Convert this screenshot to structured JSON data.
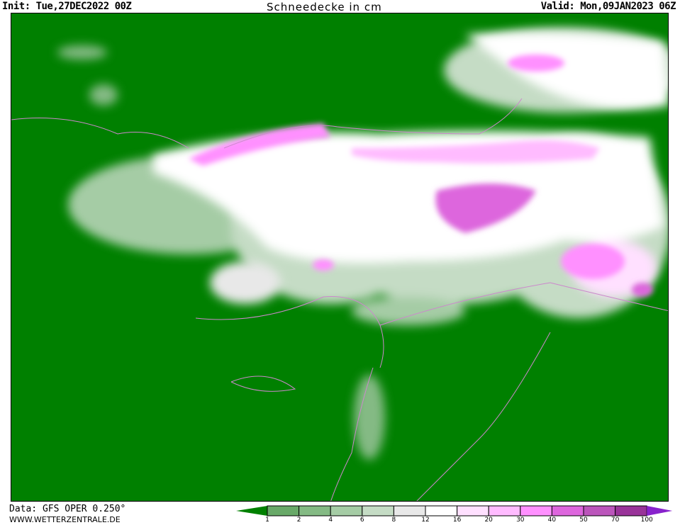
{
  "header": {
    "init": "Init: Tue,27DEC2022 00Z",
    "title": "Schneedecke in cm",
    "valid": "Valid: Mon,09JAN2023 06Z"
  },
  "footer": {
    "source": "Data: GFS OPER 0.250°",
    "website": "WWW.WETTERZENTRALE.DE"
  },
  "map": {
    "background": "#008000",
    "border_color": "#cc88cc"
  },
  "legend": {
    "below_color": "#008000",
    "above_color": "#8822cc",
    "thresholds": [
      "1",
      "2",
      "4",
      "6",
      "8",
      "12",
      "16",
      "20",
      "30",
      "40",
      "50",
      "70",
      "100"
    ],
    "colors": [
      "#68a968",
      "#84ba84",
      "#a5cca5",
      "#c5dcc5",
      "#e8e8e8",
      "#ffffff",
      "#ffe0ff",
      "#ffbbff",
      "#ff90ff",
      "#dd66dd",
      "#bb55bb",
      "#993399"
    ]
  }
}
